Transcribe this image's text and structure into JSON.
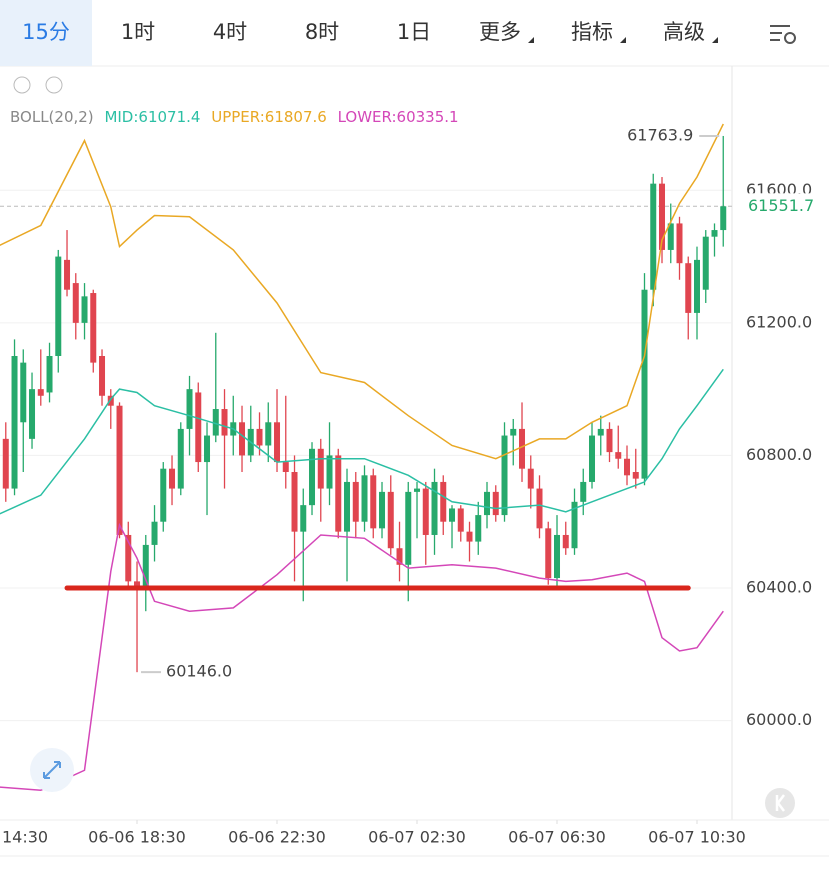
{
  "tabs": [
    {
      "label": "15分",
      "active": true
    },
    {
      "label": "1时"
    },
    {
      "label": "4时"
    },
    {
      "label": "8时"
    },
    {
      "label": "1日"
    },
    {
      "label": "更多",
      "menu": true
    },
    {
      "label": "指标",
      "menu": true
    },
    {
      "label": "高级",
      "menu": true
    }
  ],
  "indicator": {
    "name": "BOLL(20,2)",
    "mid": "MID:61071.4",
    "upper": "UPPER:61807.6",
    "lower": "LOWER:60335.1"
  },
  "chart_data": {
    "type": "candlestick",
    "xlim": [
      0.34,
      84
    ],
    "ylim": [
      59700,
      61975
    ],
    "xticks": [
      {
        "value": 0,
        "label": "14:30"
      },
      {
        "value": 16,
        "label": "06-06 18:30"
      },
      {
        "value": 32,
        "label": "06-06 22:30"
      },
      {
        "value": 48,
        "label": "06-07 02:30"
      },
      {
        "value": 64,
        "label": "06-07 06:30"
      },
      {
        "value": 80,
        "label": "06-07 10:30"
      }
    ],
    "yticks": [
      {
        "value": 60000,
        "label": "60000.0"
      },
      {
        "value": 60400,
        "label": "60400.0"
      },
      {
        "value": 60800,
        "label": "60800.0"
      },
      {
        "value": 61200,
        "label": "61200.0"
      },
      {
        "value": 61600,
        "label": "61600.0"
      }
    ],
    "grid": true,
    "up_color": "#26a96c",
    "down_color": "#e0454f",
    "x": [
      1,
      2,
      3,
      4,
      5,
      6,
      7,
      8,
      9,
      10,
      11,
      12,
      13,
      14,
      15,
      16,
      17,
      18,
      19,
      20,
      21,
      22,
      23,
      24,
      25,
      26,
      27,
      28,
      29,
      30,
      31,
      32,
      33,
      34,
      35,
      36,
      37,
      38,
      39,
      40,
      41,
      42,
      43,
      44,
      45,
      46,
      47,
      48,
      49,
      50,
      51,
      52,
      53,
      54,
      55,
      56,
      57,
      58,
      59,
      60,
      61,
      62,
      63,
      64,
      65,
      66,
      67,
      68,
      69,
      70,
      71,
      72,
      73,
      74,
      75,
      76,
      77,
      78,
      79,
      80,
      81,
      82,
      83
    ],
    "open": [
      60850,
      60700,
      60900,
      60850,
      61000,
      60990,
      61100,
      61390,
      61320,
      61200,
      61290,
      61100,
      60980,
      60950,
      60560,
      60420,
      60400,
      60530,
      60600,
      60760,
      60700,
      60880,
      60990,
      60780,
      60860,
      60940,
      60860,
      60900,
      60800,
      60880,
      60830,
      60900,
      60780,
      60750,
      60570,
      60650,
      60820,
      60700,
      60800,
      60570,
      60720,
      60600,
      60740,
      60580,
      60690,
      60520,
      60470,
      60690,
      60700,
      60560,
      60720,
      60600,
      60640,
      60570,
      60540,
      60620,
      60690,
      60620,
      60860,
      60880,
      60760,
      60700,
      60580,
      60430,
      60560,
      60520,
      60660,
      60720,
      60860,
      60880,
      60810,
      60790,
      60750,
      60730,
      61300,
      61620,
      61420,
      61500,
      61380,
      61230,
      61300,
      61460,
      61480
    ],
    "high": [
      60900,
      61150,
      61120,
      61050,
      61120,
      61140,
      61420,
      61480,
      61350,
      61320,
      61300,
      61120,
      61000,
      60960,
      60600,
      60480,
      60560,
      60650,
      60780,
      60800,
      60900,
      61040,
      61020,
      60900,
      61170,
      61000,
      60980,
      60950,
      60950,
      60930,
      60960,
      61000,
      60980,
      60800,
      60700,
      60840,
      60850,
      60900,
      60820,
      60760,
      60750,
      60770,
      60760,
      60720,
      60740,
      60600,
      60720,
      60720,
      60720,
      60760,
      60740,
      60650,
      60650,
      60600,
      60660,
      60720,
      60710,
      60900,
      60910,
      60960,
      60800,
      60740,
      60600,
      60620,
      60600,
      60700,
      60760,
      60900,
      60920,
      60900,
      60890,
      60830,
      60820,
      61350,
      61650,
      61640,
      61560,
      61520,
      61400,
      61430,
      61480,
      61500,
      61763.9
    ],
    "low": [
      60660,
      60680,
      60750,
      60820,
      60950,
      60960,
      61050,
      61280,
      61150,
      61150,
      61050,
      60950,
      60880,
      60550,
      60400,
      60146,
      60330,
      60480,
      60570,
      60650,
      60680,
      60800,
      60750,
      60620,
      60840,
      60700,
      60800,
      60750,
      60780,
      60800,
      60780,
      60750,
      60700,
      60420,
      60360,
      60620,
      60600,
      60650,
      60550,
      60420,
      60550,
      60570,
      60550,
      60550,
      60500,
      60420,
      60360,
      60550,
      60470,
      60500,
      60560,
      60520,
      60540,
      60480,
      60500,
      60580,
      60600,
      60600,
      60770,
      60720,
      60640,
      60550,
      60410,
      60400,
      60500,
      60500,
      60620,
      60700,
      60800,
      60780,
      60760,
      60710,
      60700,
      60710,
      61250,
      61380,
      61380,
      61330,
      61150,
      61150,
      61260,
      61400,
      61430
    ],
    "close": [
      60700,
      61100,
      61080,
      61000,
      60980,
      61100,
      61400,
      61300,
      61200,
      61280,
      61080,
      60980,
      60950,
      60560,
      60420,
      60400,
      60530,
      60600,
      60760,
      60700,
      60880,
      61000,
      60780,
      60860,
      60940,
      60860,
      60900,
      60800,
      60880,
      60830,
      60900,
      60780,
      60750,
      60570,
      60650,
      60820,
      60700,
      60800,
      60570,
      60720,
      60600,
      60740,
      60580,
      60690,
      60520,
      60470,
      60690,
      60700,
      60560,
      60720,
      60600,
      60640,
      60570,
      60540,
      60620,
      60690,
      60620,
      60860,
      60880,
      60760,
      60700,
      60580,
      60430,
      60560,
      60520,
      60660,
      60720,
      60860,
      60880,
      60810,
      60790,
      60740,
      60730,
      61300,
      61620,
      61420,
      61500,
      61380,
      61230,
      61390,
      61460,
      61480,
      61551.7
    ],
    "lines": [
      {
        "name": "UPPER",
        "color": "#e9a824",
        "x": [
          0,
          5,
          10,
          13,
          14,
          16,
          18,
          22,
          27,
          32,
          37,
          42,
          47,
          52,
          57,
          62,
          65,
          68,
          72,
          74,
          76,
          78,
          80,
          83
        ],
        "values": [
          61430,
          61494,
          61750,
          61550,
          61430,
          61480,
          61524,
          61520,
          61420,
          61260,
          61050,
          61020,
          60920,
          60830,
          60790,
          60850,
          60850,
          60900,
          60950,
          61100,
          61450,
          61560,
          61640,
          61800
        ]
      },
      {
        "name": "MID",
        "color": "#2bbfa4",
        "x": [
          0,
          5,
          10,
          13,
          14,
          16,
          18,
          22,
          27,
          32,
          37,
          42,
          47,
          52,
          57,
          62,
          65,
          68,
          72,
          74,
          76,
          78,
          80,
          83
        ],
        "values": [
          60620,
          60680,
          60850,
          60970,
          61000,
          60990,
          60950,
          60920,
          60880,
          60780,
          60790,
          60790,
          60740,
          60660,
          60640,
          60650,
          60630,
          60660,
          60700,
          60720,
          60790,
          60880,
          60950,
          61060
        ]
      },
      {
        "name": "LOWER",
        "color": "#d447b8",
        "x": [
          0,
          5,
          10,
          13,
          14,
          16,
          18,
          22,
          27,
          32,
          37,
          42,
          47,
          52,
          57,
          62,
          65,
          68,
          72,
          74,
          76,
          78,
          80,
          83
        ],
        "values": [
          59800,
          59790,
          59850,
          60450,
          60590,
          60490,
          60360,
          60330,
          60340,
          60440,
          60560,
          60550,
          60460,
          60470,
          60460,
          60430,
          60420,
          60425,
          60445,
          60420,
          60250,
          60210,
          60220,
          60330
        ]
      }
    ],
    "support_line": {
      "value": 60400,
      "x": [
        8,
        79
      ],
      "color": "#d9261c"
    },
    "high_marker": 61763.9,
    "low_marker": {
      "value": 60146,
      "label": "60146.0"
    },
    "last_price": 61551.7
  }
}
